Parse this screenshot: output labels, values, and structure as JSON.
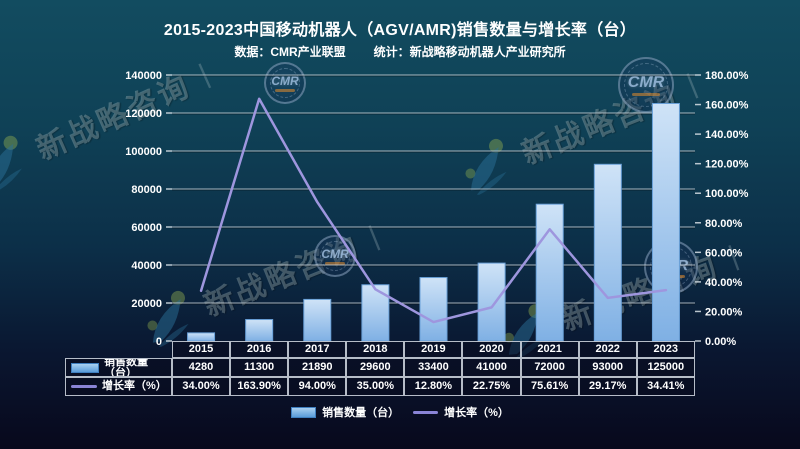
{
  "header": {
    "title": "2015-2023中国移动机器人（AGV/AMR)销售数量与增长率（台）",
    "source": "数据：CMR产业联盟",
    "stat": "统计：新战略移动机器人产业研究所"
  },
  "chart_data": {
    "type": "combo-bar-line",
    "title": "2015-2023中国移动机器人（AGV/AMR)销售数量与增长率（台）",
    "categories": [
      "2015",
      "2016",
      "2017",
      "2018",
      "2019",
      "2020",
      "2021",
      "2022",
      "2023"
    ],
    "series": [
      {
        "name": "销售数量（台）",
        "type": "bar",
        "axis": "left",
        "values": [
          4280,
          11300,
          21890,
          29600,
          33400,
          41000,
          72000,
          93000,
          125000
        ]
      },
      {
        "name": "增长率（%）",
        "type": "line",
        "axis": "right",
        "values": [
          34.0,
          163.9,
          94.0,
          35.0,
          12.8,
          22.75,
          75.61,
          29.17,
          34.41
        ],
        "labels": [
          "34.00%",
          "163.90%",
          "94.00%",
          "35.00%",
          "12.80%",
          "22.75%",
          "75.61%",
          "29.17%",
          "34.41%"
        ]
      }
    ],
    "left_axis": {
      "min": 0,
      "max": 140000,
      "step": 20000,
      "ticks": [
        "0",
        "20000",
        "40000",
        "60000",
        "80000",
        "100000",
        "120000",
        "140000"
      ]
    },
    "right_axis": {
      "min": 0,
      "max": 180,
      "step": 20,
      "ticks": [
        "0.00%",
        "20.00%",
        "40.00%",
        "60.00%",
        "80.00%",
        "100.00%",
        "120.00%",
        "140.00%",
        "160.00%",
        "180.00%"
      ]
    },
    "grid": true,
    "legend_position": "bottom",
    "colors": {
      "bar_top": "#cfe3f7",
      "bar_bottom": "#7fb0e4",
      "bar_border": "#69a0d8",
      "line": "#9e96de",
      "grid": "#cdd7de",
      "axis_text": "#ffffff"
    }
  },
  "table": {
    "years": [
      "2015",
      "2016",
      "2017",
      "2018",
      "2019",
      "2020",
      "2021",
      "2022",
      "2023"
    ],
    "rows": [
      {
        "label": "销售数量（台）",
        "swatch": "bar",
        "values": [
          "4280",
          "11300",
          "21890",
          "29600",
          "33400",
          "41000",
          "72000",
          "93000",
          "125000"
        ]
      },
      {
        "label": "增长率（%）",
        "swatch": "line",
        "values": [
          "34.00%",
          "163.90%",
          "94.00%",
          "35.00%",
          "12.80%",
          "22.75%",
          "75.61%",
          "29.17%",
          "34.41%"
        ]
      }
    ]
  },
  "legend": {
    "sales_label": "销售数量（台）",
    "growth_label": "增长率（%）"
  },
  "watermark": {
    "text": "新战略咨询",
    "divider": "|",
    "logo_text": "CMR"
  }
}
